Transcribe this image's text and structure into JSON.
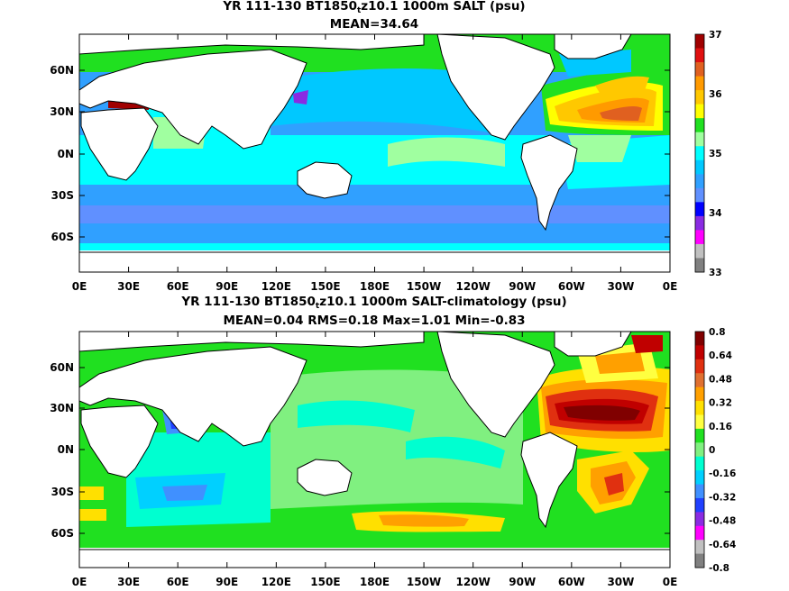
{
  "panels": [
    {
      "title_pre": "YR 111-130 BT1850",
      "title_sub": "t",
      "title_post": "z10.1 1000m SALT (psu)",
      "stats": "MEAN=34.64"
    },
    {
      "title_pre": "YR 111-130 BT1850",
      "title_sub": "t",
      "title_post": "z10.1 1000m SALT-climatology (psu)",
      "stats": "MEAN=0.04   RMS=0.18   Max=1.01   Min=-0.83"
    }
  ],
  "chart_data": [
    {
      "type": "heatmap",
      "variable": "SALT 1000m",
      "units": "psu",
      "mean": 34.64,
      "x_ticks": [
        "0E",
        "30E",
        "60E",
        "90E",
        "120E",
        "150E",
        "180E",
        "150W",
        "120W",
        "90W",
        "60W",
        "30W",
        "0E"
      ],
      "y_ticks": [
        "60N",
        "30N",
        "0N",
        "30S",
        "60S"
      ],
      "colorbar": {
        "labels": [
          "37",
          "36",
          "35",
          "34",
          "33"
        ],
        "colors": [
          "#a00000",
          "#e01010",
          "#e06020",
          "#ff9a00",
          "#ffc800",
          "#ffff00",
          "#20e020",
          "#a0ffa0",
          "#00ffff",
          "#00c8ff",
          "#30a0ff",
          "#6090ff",
          "#0000ff",
          "#8a2be2",
          "#ff00ff",
          "#c0c0c0",
          "#808080"
        ]
      }
    },
    {
      "type": "heatmap",
      "variable": "SALT-climatology 1000m",
      "units": "psu",
      "mean": 0.04,
      "rms": 0.18,
      "max": 1.01,
      "min": -0.83,
      "x_ticks": [
        "0E",
        "30E",
        "60E",
        "90E",
        "120E",
        "150E",
        "180E",
        "150W",
        "120W",
        "90W",
        "60W",
        "30W",
        "0E"
      ],
      "y_ticks": [
        "60N",
        "30N",
        "0N",
        "30S",
        "60S"
      ],
      "colorbar": {
        "labels": [
          "0.8",
          "0.64",
          "0.48",
          "0.32",
          "0.16",
          "0",
          "-0.16",
          "-0.32",
          "-0.48",
          "-0.64",
          "-0.8"
        ],
        "colors": [
          "#800000",
          "#c00000",
          "#e03010",
          "#e07030",
          "#ffa000",
          "#ffe000",
          "#ffff40",
          "#20e020",
          "#80f080",
          "#00ffd0",
          "#00d0ff",
          "#4090ff",
          "#2040ff",
          "#8a2be2",
          "#ff00ff",
          "#c0c0c0",
          "#808080"
        ]
      }
    }
  ]
}
